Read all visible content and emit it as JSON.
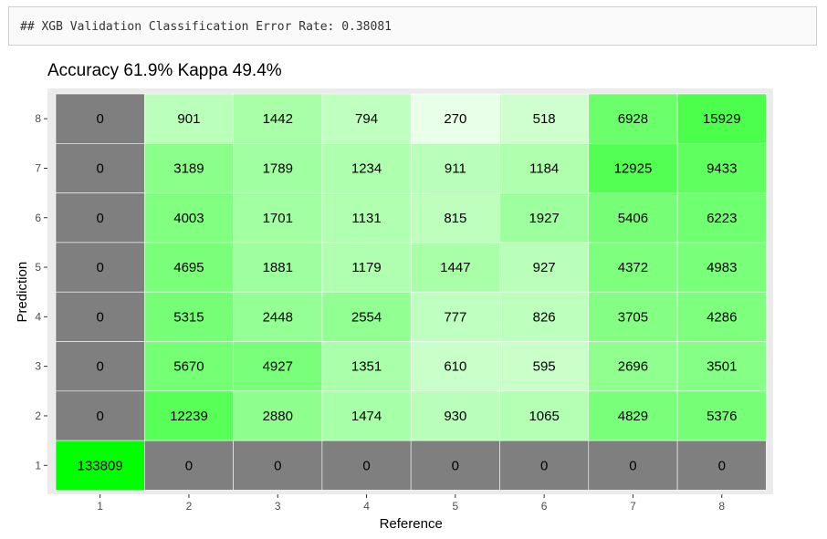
{
  "console": {
    "text": "## XGB Validation Classification Error Rate: 0.38081"
  },
  "chart_data": {
    "type": "heatmap",
    "title": "Accuracy 61.9% Kappa 49.4%",
    "xlabel": "Reference",
    "ylabel": "Prediction",
    "x_categories": [
      "1",
      "2",
      "3",
      "4",
      "5",
      "6",
      "7",
      "8"
    ],
    "y_categories": [
      "1",
      "2",
      "3",
      "4",
      "5",
      "6",
      "7",
      "8"
    ],
    "matrix": [
      {
        "prediction": "8",
        "values": [
          0,
          901,
          1442,
          794,
          270,
          518,
          6928,
          15929
        ]
      },
      {
        "prediction": "7",
        "values": [
          0,
          3189,
          1789,
          1234,
          911,
          1184,
          12925,
          9433
        ]
      },
      {
        "prediction": "6",
        "values": [
          0,
          4003,
          1701,
          1131,
          815,
          1927,
          5406,
          6223
        ]
      },
      {
        "prediction": "5",
        "values": [
          0,
          4695,
          1881,
          1179,
          1447,
          927,
          4372,
          4983
        ]
      },
      {
        "prediction": "4",
        "values": [
          0,
          5315,
          2448,
          2554,
          777,
          826,
          3705,
          4286
        ]
      },
      {
        "prediction": "3",
        "values": [
          0,
          5670,
          4927,
          1351,
          610,
          595,
          2696,
          3501
        ]
      },
      {
        "prediction": "2",
        "values": [
          0,
          12239,
          2880,
          1474,
          930,
          1065,
          4829,
          5376
        ]
      },
      {
        "prediction": "1",
        "values": [
          133809,
          0,
          0,
          0,
          0,
          0,
          0,
          0
        ]
      }
    ],
    "zero_color": "#7f7f7f",
    "low_color": "#ffffff",
    "high_color": "#00ff00",
    "panel_background": "#ebebeb",
    "grid": true
  }
}
